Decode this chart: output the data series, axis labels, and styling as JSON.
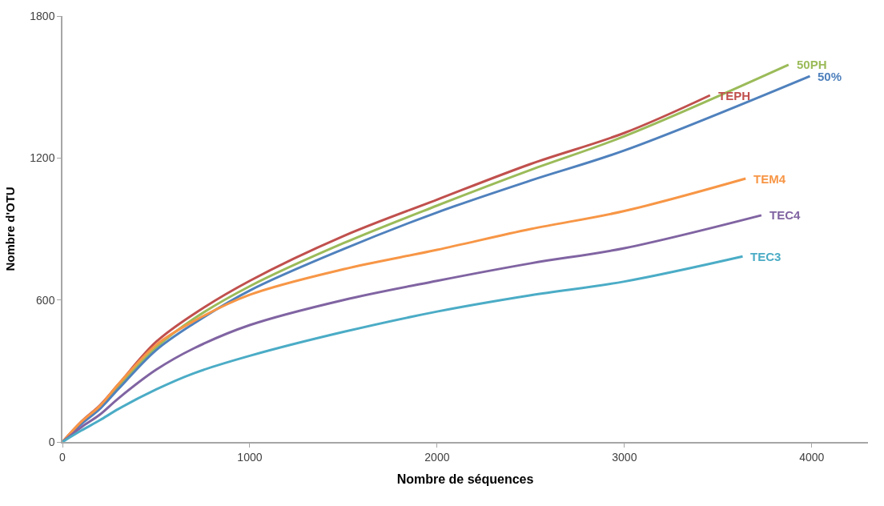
{
  "chart_data": {
    "type": "line",
    "xlabel": "Nombre de séquences",
    "ylabel": "Nombre d'OTU",
    "xlim": [
      0,
      4300
    ],
    "xticks": [
      0,
      1000,
      2000,
      3000,
      4000
    ],
    "ylim": [
      0,
      1800
    ],
    "yticks": [
      0,
      600,
      1200,
      1800
    ],
    "legend": false,
    "marker": "none",
    "line_style": "solid",
    "series": [
      {
        "name": "50PH",
        "color": "#9bbb59",
        "x": [
          0,
          100,
          200,
          300,
          500,
          700,
          1000,
          1500,
          2000,
          2500,
          3000,
          3876
        ],
        "values": [
          0,
          80,
          145,
          235,
          399,
          520,
          658,
          840,
          999,
          1150,
          1292,
          1594
        ]
      },
      {
        "name": "50%",
        "color": "#4f81bd",
        "x": [
          0,
          100,
          200,
          300,
          500,
          700,
          1000,
          1500,
          2000,
          2500,
          3000,
          3990
        ],
        "values": [
          0,
          75,
          140,
          225,
          388,
          500,
          640,
          815,
          970,
          1105,
          1232,
          1546
        ]
      },
      {
        "name": "TEPH",
        "color": "#c0504d",
        "x": [
          0,
          100,
          200,
          300,
          500,
          700,
          1000,
          1500,
          2000,
          2500,
          3000,
          3457
        ],
        "values": [
          0,
          85,
          155,
          245,
          423,
          540,
          681,
          870,
          1024,
          1175,
          1306,
          1465
        ]
      },
      {
        "name": "TEM4",
        "color": "#f79646",
        "x": [
          0,
          100,
          200,
          300,
          500,
          700,
          1000,
          1500,
          2000,
          2500,
          3000,
          3647
        ],
        "values": [
          0,
          85,
          152,
          245,
          410,
          510,
          622,
          730,
          812,
          900,
          976,
          1113
        ]
      },
      {
        "name": "TEC4",
        "color": "#8064a2",
        "x": [
          0,
          100,
          200,
          300,
          500,
          700,
          1000,
          1500,
          2000,
          2500,
          3000,
          3731
        ],
        "values": [
          0,
          62,
          116,
          185,
          305,
          395,
          494,
          600,
          681,
          755,
          819,
          958
        ]
      },
      {
        "name": "TEC3",
        "color": "#4bacc6",
        "x": [
          0,
          100,
          200,
          300,
          500,
          700,
          1000,
          1500,
          2000,
          2500,
          3000,
          3631
        ],
        "values": [
          0,
          48,
          92,
          140,
          222,
          290,
          364,
          465,
          551,
          620,
          678,
          784
        ]
      }
    ]
  }
}
